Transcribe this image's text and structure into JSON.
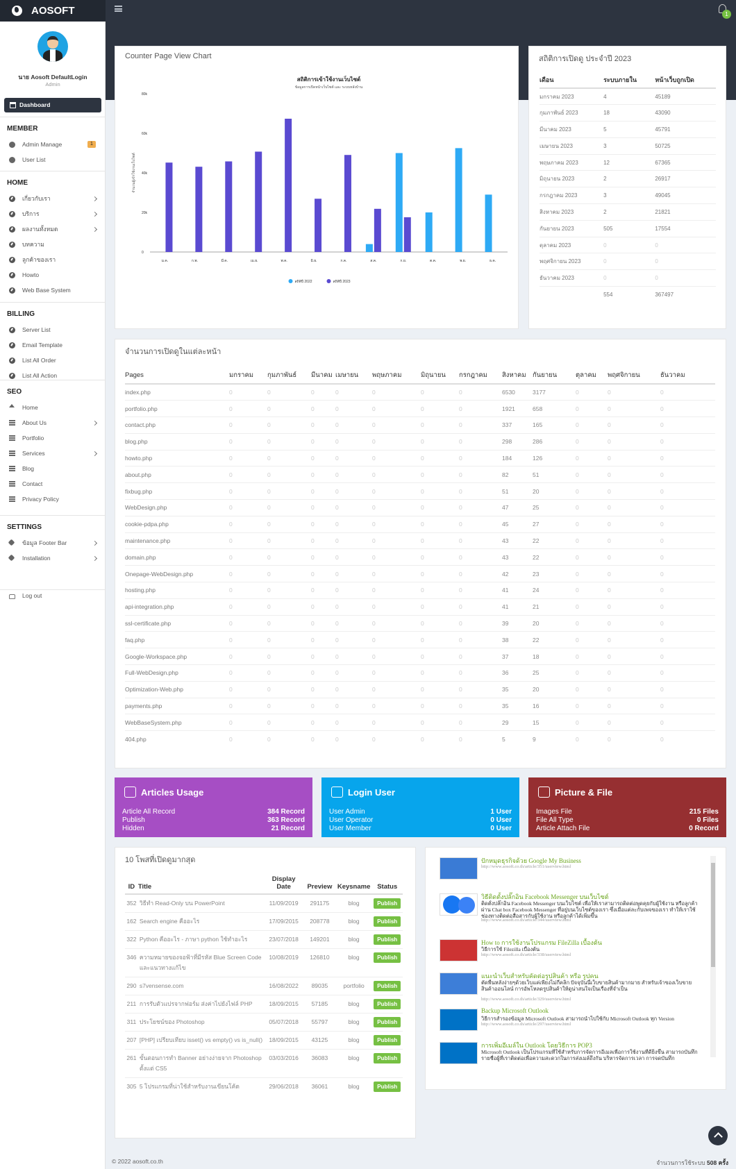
{
  "app": {
    "brand": "AOSOFT"
  },
  "user": {
    "name": "นาย Aosoft DefaultLogin",
    "role": "Admin",
    "notifications": "1"
  },
  "sidebar": {
    "dashboard": "Dashboard",
    "sections": [
      {
        "title": "MEMBER",
        "items": [
          {
            "label": "Admin Manage",
            "icon": "user-circle-icon",
            "badge": "1"
          },
          {
            "label": "User List",
            "icon": "user-circle-icon"
          }
        ]
      },
      {
        "title": "HOME",
        "items": [
          {
            "label": "เกี่ยวกับเรา",
            "icon": "circle-arrow-icon",
            "arrow": true
          },
          {
            "label": "บริการ",
            "icon": "circle-arrow-icon",
            "arrow": true
          },
          {
            "label": "ผลงานทั้งหมด",
            "icon": "circle-arrow-icon",
            "arrow": true
          },
          {
            "label": "บทความ",
            "icon": "circle-arrow-icon"
          },
          {
            "label": "ลูกค้าของเรา",
            "icon": "circle-arrow-icon"
          },
          {
            "label": "Howto",
            "icon": "circle-arrow-icon"
          },
          {
            "label": "Web Base System",
            "icon": "circle-arrow-icon"
          }
        ]
      },
      {
        "title": "BILLING",
        "items": [
          {
            "label": "Server List",
            "icon": "circle-arrow-icon"
          },
          {
            "label": "Email Template",
            "icon": "circle-arrow-icon"
          },
          {
            "label": "List All Order",
            "icon": "circle-arrow-icon"
          },
          {
            "label": "List All Action",
            "icon": "circle-arrow-icon"
          }
        ]
      },
      {
        "title": "SEO",
        "items": [
          {
            "label": "Home",
            "icon": "home-icon"
          },
          {
            "label": "About Us",
            "icon": "list-icon",
            "arrow": true
          },
          {
            "label": "Portfolio",
            "icon": "list-icon"
          },
          {
            "label": "Services",
            "icon": "list-icon",
            "arrow": true
          },
          {
            "label": "Blog",
            "icon": "list-icon"
          },
          {
            "label": "Contact",
            "icon": "list-icon"
          },
          {
            "label": "Privacy Policy",
            "icon": "list-icon"
          }
        ]
      },
      {
        "title": "SETTINGS",
        "items": [
          {
            "label": "ข้อมูล Footer Bar",
            "icon": "gears-icon",
            "arrow": true
          },
          {
            "label": "Installation",
            "icon": "gears-icon",
            "arrow": true
          }
        ]
      }
    ],
    "logout": "Log out"
  },
  "chart_panel": {
    "title": "Counter Page View Chart"
  },
  "chart_data": {
    "type": "bar",
    "title": "สถิติการเข้าใช้งานเว็บไซต์",
    "subtitle": "ข้อมูลการเปิดหน้าเว็บไซต์ และ ระบบหลังบ้าน",
    "ylabel": "จำนวนผู้เข้าใช้งานเว็บไซต์",
    "ylim": [
      0,
      80000
    ],
    "yticks": [
      "0",
      "20k",
      "40k",
      "60k",
      "80k"
    ],
    "categories": [
      "ม.ค.",
      "ก.พ.",
      "มี.ค.",
      "เม.ย.",
      "พ.ค.",
      "มิ.ย.",
      "ก.ค.",
      "ส.ค.",
      "ก.ย.",
      "ต.ค.",
      "พ.ย.",
      "ธ.ค."
    ],
    "series": [
      {
        "name": "สถิติปี 2022",
        "color": "#2eaaf5",
        "values": [
          0,
          0,
          0,
          0,
          0,
          0,
          0,
          4000,
          50000,
          20000,
          52500,
          29000
        ]
      },
      {
        "name": "สถิติปี 2023",
        "color": "#5a4ad1",
        "values": [
          45189,
          43090,
          45791,
          50725,
          67365,
          26917,
          49045,
          21821,
          17554,
          0,
          0,
          0
        ]
      }
    ],
    "legend": "bottom"
  },
  "stats": {
    "title": "สถิติการเปิดดู ประจำปี 2023",
    "headers": [
      "เดือน",
      "ระบบภายใน",
      "หน้าเว็บถูกเปิด"
    ],
    "rows": [
      [
        "มกราคม 2023",
        "4",
        "45189"
      ],
      [
        "กุมภาพันธ์ 2023",
        "18",
        "43090"
      ],
      [
        "มีนาคม 2023",
        "5",
        "45791"
      ],
      [
        "เมษายน 2023",
        "3",
        "50725"
      ],
      [
        "พฤษภาคม 2023",
        "12",
        "67365"
      ],
      [
        "มิถุนายน 2023",
        "2",
        "26917"
      ],
      [
        "กรกฎาคม 2023",
        "3",
        "49045"
      ],
      [
        "สิงหาคม 2023",
        "2",
        "21821"
      ],
      [
        "กันยายน 2023",
        "505",
        "17554"
      ],
      [
        "ตุลาคม 2023",
        "0",
        "0"
      ],
      [
        "พฤศจิกายน 2023",
        "0",
        "0"
      ],
      [
        "ธันวาคม 2023",
        "0",
        "0"
      ],
      [
        "",
        "554",
        "367497"
      ]
    ]
  },
  "pageviews": {
    "title": "จำนวนการเปิดดูในแต่ละหน้า",
    "headers": [
      "Pages",
      "มกราคม",
      "กุมภาพันธ์",
      "มีนาคม",
      "เมษายน",
      "พฤษภาคม",
      "มิถุนายน",
      "กรกฎาคม",
      "สิงหาคม",
      "กันยายน",
      "ตุลาคม",
      "พฤศจิกายน",
      "ธันวาคม"
    ],
    "rows": [
      [
        "index.php",
        "6530",
        "3177"
      ],
      [
        "portfolio.php",
        "1921",
        "658"
      ],
      [
        "contact.php",
        "337",
        "165"
      ],
      [
        "blog.php",
        "298",
        "286"
      ],
      [
        "howto.php",
        "184",
        "126"
      ],
      [
        "about.php",
        "82",
        "51"
      ],
      [
        "fixbug.php",
        "51",
        "20"
      ],
      [
        "WebDesign.php",
        "47",
        "25"
      ],
      [
        "cookie-pdpa.php",
        "45",
        "27"
      ],
      [
        "maintenance.php",
        "43",
        "22"
      ],
      [
        "domain.php",
        "43",
        "22"
      ],
      [
        "Onepage-WebDesign.php",
        "42",
        "23"
      ],
      [
        "hosting.php",
        "41",
        "24"
      ],
      [
        "api-integration.php",
        "41",
        "21"
      ],
      [
        "ssl-certificate.php",
        "39",
        "20"
      ],
      [
        "faq.php",
        "38",
        "22"
      ],
      [
        "Google-Workspace.php",
        "37",
        "18"
      ],
      [
        "Full-WebDesign.php",
        "36",
        "25"
      ],
      [
        "Optimization-Web.php",
        "35",
        "20"
      ],
      [
        "payments.php",
        "35",
        "16"
      ],
      [
        "WebBaseSystem.php",
        "29",
        "15"
      ],
      [
        "404.php",
        "5",
        "9"
      ]
    ],
    "zero": "0"
  },
  "cards": [
    {
      "title": "Articles Usage",
      "color": "#a64ec4",
      "icon": "drive-icon",
      "rows": [
        [
          "Article All Record",
          "384 Record"
        ],
        [
          "Publish",
          "363 Record"
        ],
        [
          "Hidden",
          "21 Record"
        ]
      ]
    },
    {
      "title": "Login User",
      "color": "#07a5ec",
      "icon": "user-icon",
      "rows": [
        [
          "User Admin",
          "1 User"
        ],
        [
          "User Operator",
          "0 User"
        ],
        [
          "User Member",
          "0 User"
        ]
      ]
    },
    {
      "title": "Picture & File",
      "color": "#962f31",
      "icon": "camera-icon",
      "rows": [
        [
          "Images File",
          "215 Files"
        ],
        [
          "File All Type",
          "0 Files"
        ],
        [
          "Article Attach File",
          "0 Record"
        ]
      ]
    }
  ],
  "top_posts": {
    "title": "10 โพสที่เปิดดูมากสุด",
    "headers": [
      "ID",
      "Title",
      "Display Date",
      "Preview",
      "Keysname",
      "Status"
    ],
    "rows": [
      [
        "352",
        "วิธีทำ Read-Only บน PowerPoint",
        "11/09/2019",
        "291175",
        "blog",
        "Publish"
      ],
      [
        "162",
        "Search engine คืออะไร",
        "17/09/2015",
        "208778",
        "blog",
        "Publish"
      ],
      [
        "322",
        "Python คืออะไร - ภาษา python ใช้ทำอะไร",
        "23/07/2018",
        "149201",
        "blog",
        "Publish"
      ],
      [
        "346",
        "ความหมายของจอฟ้าที่มีรหัส Blue Screen Code และแนวทางแก้ไข",
        "10/08/2019",
        "126810",
        "blog",
        "Publish"
      ],
      [
        "290",
        "s7vensense.com",
        "16/08/2022",
        "89035",
        "portfolio",
        "Publish"
      ],
      [
        "211",
        "การรับตัวแปรจากฟอร์ม ส่งค่าไปยังไฟล์ PHP",
        "18/09/2015",
        "57185",
        "blog",
        "Publish"
      ],
      [
        "311",
        "ประโยชน์ของ Photoshop",
        "05/07/2018",
        "55797",
        "blog",
        "Publish"
      ],
      [
        "207",
        "[PHP] เปรียบเทียบ isset() vs empty() vs is_null()",
        "18/09/2015",
        "43125",
        "blog",
        "Publish"
      ],
      [
        "261",
        "ขั้นตอนการทำ Banner อย่างง่ายจาก Photoshop ตั้งแต่ CS5",
        "03/03/2016",
        "36083",
        "blog",
        "Publish"
      ],
      [
        "305",
        "5 โปรแกรมที่น่าใช้สำหรับงานเขียนโค้ด",
        "29/06/2018",
        "36061",
        "blog",
        "Publish"
      ]
    ]
  },
  "articles": [
    {
      "title": "ปักหมุดธุรกิจด้วย Google My Business",
      "desc": "",
      "url": "http://www.aosoft.co.th/article/351/userview.html",
      "thumb": "gmb"
    },
    {
      "title": "วิธีติดตั้งปลั๊กอิน Facebook Messenger บนเว็บไซต์",
      "desc": "ติดตั้งปลั๊กอิน Facebook Messenger บนเว็บไซต์ เพื่อให้เราสามารถติดต่อพูดคุยกับผู้ใช้งาน หรือลูกค้าผ่าน Chat box Facebook Messenger ที่อยู่บนเว็บไซต์ของเรา ซึ่งเมื่อแต่ละกับเพจของเรา ทำให้เราใช้ช่องทางติดต่อสื่อสารกับผู้ใช้งาน หรือลูกค้าได้เพิ่มขึ้น",
      "url": "http://www.aosoft.co.th/article/344/userview.html",
      "thumb": "fb"
    },
    {
      "title": "How to การใช้งานโปรแกรม FileZilla เบื้องต้น",
      "desc": "วิธีการใช้ Filezilla เบื้องต้น",
      "url": "http://www.aosoft.co.th/article/338/userview.html",
      "thumb": "fz"
    },
    {
      "title": "แนะนำเว็บสำหรับคัดต่อรูปสินค้า หรือ รูปคน",
      "desc": "ตัดพื้นหลังง่ายๆด้วยเว็บแค่เพียงไม่กี่คลิก ปัจจุบันนี้เว็บขายสินค้ามากมาย สำหรับเจ้าของเว็บขายสินค้าออนไลน์ การอัพโหลดรูปสินค้าให้ดูน่าสนใจเป็นเรื่องที่จำเป็น",
      "url": "http://www.aosoft.co.th/article/329/userview.html",
      "thumb": "cut"
    },
    {
      "title": "Backup Microsoft Outlook",
      "desc": "วิธีการสำรองข้อมูล Microsoft Outlook สามารถนำไปใช้กับ Microsoft Outlook ทุก Version",
      "url": "http://www.aosoft.co.th/article/297/userview.html",
      "thumb": "ol"
    },
    {
      "title": "การเพิ่มอีเมล์ใน Outlook โดยวิธีการ POP3",
      "desc": "Microsoft Outlook เป็นโปรแกรมที่ใช้สำหรับการจัดการอีเมลเพื่อการใช้งานที่ดียิ่งขึ้น สามารถบันทึกรายชื่อผู้ที่เราติดต่อเพื่อความสะดวกในการส่งเมล์ถึงกัน บริหารจัดการเวลา การจดบันทึก",
      "url": "",
      "thumb": "ol"
    }
  ],
  "footer": {
    "copyright": "© 2022 aosoft.co.th",
    "usage": "จำนวนการใช้ระบบ",
    "usage_count": "508 ครั้ง"
  }
}
